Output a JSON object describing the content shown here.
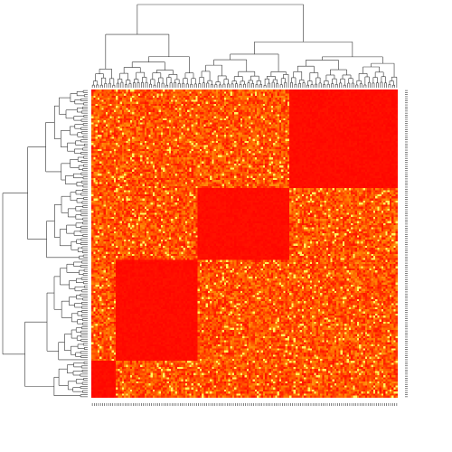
{
  "chart_data": {
    "type": "heatmap",
    "title": "",
    "xlabel": "",
    "ylabel": "",
    "n_cols": 150,
    "n_rows": 150,
    "colormap": [
      "#ff0000",
      "#ff7a00",
      "#ffff66"
    ],
    "color_range": [
      0,
      1
    ],
    "column_blocks": [
      {
        "name": "A",
        "size": 12
      },
      {
        "name": "B",
        "size": 40
      },
      {
        "name": "C",
        "size": 45
      },
      {
        "name": "D",
        "size": 53
      }
    ],
    "row_blocks": [
      {
        "name": "D",
        "size": 48
      },
      {
        "name": "C",
        "size": 35
      },
      {
        "name": "B",
        "size": 49
      },
      {
        "name": "A",
        "size": 18
      }
    ],
    "within_block_level": 0.02,
    "between_block_level": 0.45,
    "column_dendrogram": true,
    "row_dendrogram": true,
    "row_tick_labels_visible": true,
    "column_tick_labels_visible": true
  }
}
